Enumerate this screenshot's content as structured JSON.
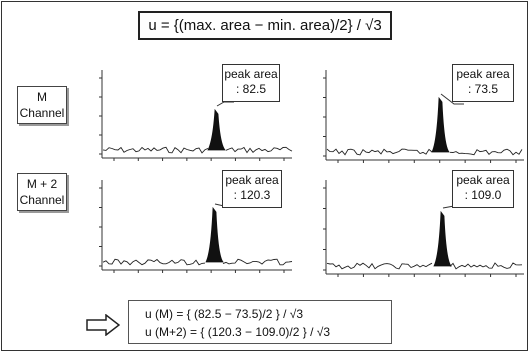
{
  "formula": "u = {(max. area − min. area)/2} / √3",
  "channels": [
    {
      "line1": "M",
      "line2": "Channel"
    },
    {
      "line1": "M + 2",
      "line2": "Channel"
    }
  ],
  "callout_label": "peak area",
  "chart_data": [
    {
      "type": "line",
      "channel": "M",
      "peak_area": ": 82.5"
    },
    {
      "type": "line",
      "channel": "M",
      "peak_area": ": 73.5"
    },
    {
      "type": "line",
      "channel": "M + 2",
      "peak_area": ": 120.3"
    },
    {
      "type": "line",
      "channel": "M + 2",
      "peak_area": ": 109.0"
    }
  ],
  "equations": [
    "u (M) = { (82.5 − 73.5)/2 } / √3",
    "u (M+2) = { (120.3 − 109.0)/2 } / √3"
  ]
}
